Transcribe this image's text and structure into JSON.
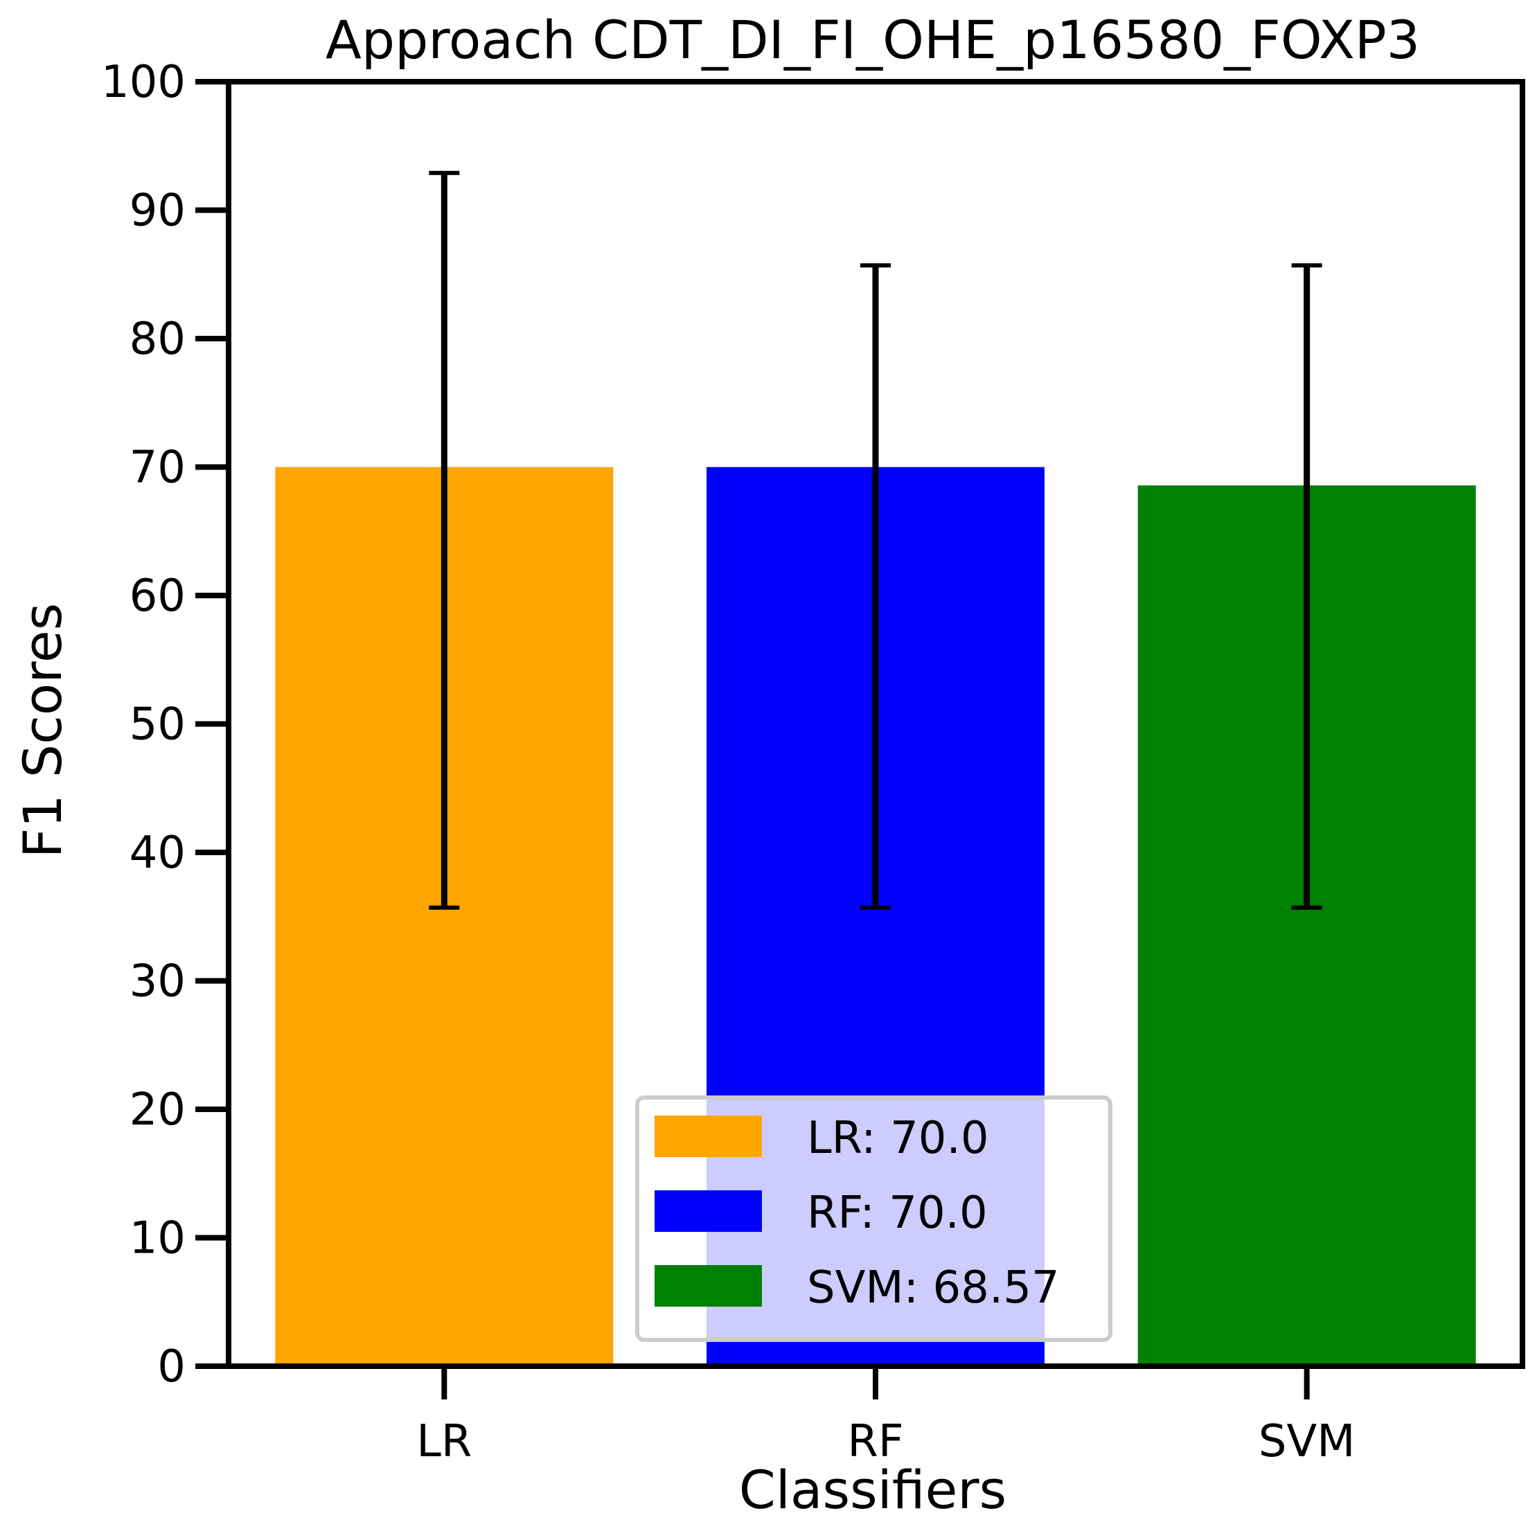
{
  "chart_data": {
    "type": "bar",
    "title": "Approach CDT_DI_FI_OHE_p16580_FOXP3",
    "xlabel": "Classifiers",
    "ylabel": "F1 Scores",
    "ylim": [
      0,
      100
    ],
    "yticks": [
      0,
      10,
      20,
      30,
      40,
      50,
      60,
      70,
      80,
      90,
      100
    ],
    "grid": false,
    "legend_position": "bottom-center",
    "categories": [
      "LR",
      "RF",
      "SVM"
    ],
    "values": [
      70.0,
      70.0,
      68.57
    ],
    "error_low": [
      35.7,
      35.7,
      35.7
    ],
    "error_high": [
      92.9,
      85.7,
      85.7
    ],
    "colors": [
      "#FFA500",
      "#0000FF",
      "#008000"
    ],
    "legend": [
      {
        "label": "LR: 70.0",
        "color": "#FFA500"
      },
      {
        "label": "RF: 70.0",
        "color": "#0000FF"
      },
      {
        "label": "SVM: 68.57",
        "color": "#008000"
      }
    ]
  }
}
